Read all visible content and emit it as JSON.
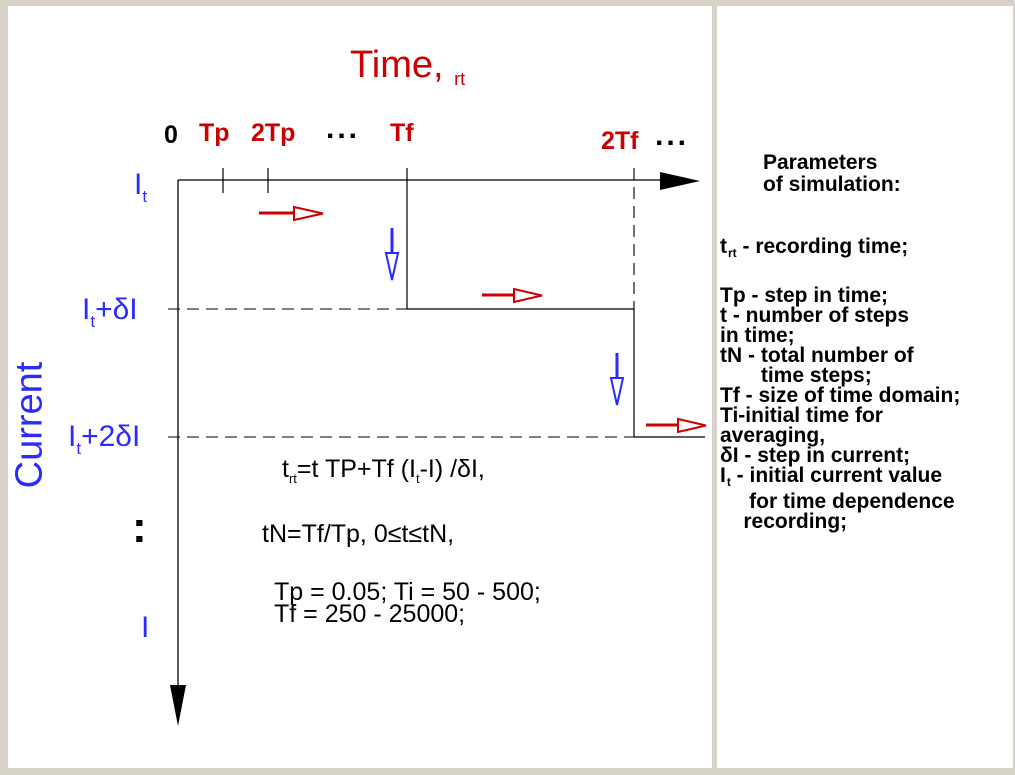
{
  "title": {
    "text": "Time, ",
    "sub": "rt"
  },
  "time_ticks": {
    "zero": "0",
    "tp": "Tp",
    "two_tp": "2Tp",
    "dots1": "...",
    "tf": "Tf",
    "two_tf": "2Tf",
    "dots2": "..."
  },
  "current_axis": {
    "label": "Current",
    "level0": {
      "main": "I",
      "sub": "t",
      "suffix": ""
    },
    "level1": {
      "main": "I",
      "sub": "t",
      "suffix": "+δI"
    },
    "level2": {
      "main": "I",
      "sub": "t",
      "suffix": "+2δI"
    },
    "dots": ":",
    "last": "I"
  },
  "formulas": {
    "line1": {
      "a": "t",
      "a_sub": "rt",
      "b": "=t TP+Tf (I",
      "b_sub": "t",
      "c": "-I) /δI,"
    },
    "line2": "tN=Tf/Tp, 0≤t≤tN,",
    "line3": "Tp = 0.05;  Ti = 50 - 500;",
    "line4": "Tf = 250 - 25000;"
  },
  "parameters": {
    "heading_line1": "Parameters",
    "heading_line2": "of simulation:",
    "trt": {
      "main": "t",
      "sub": "rt",
      "rest": " - recording time;"
    },
    "lines": [
      "Tp - step in time;",
      "t - number of steps",
      "in time;",
      "tN - total number of",
      "       time steps;",
      "Tf - size of time domain;",
      "Ti-initial time for",
      "averaging,",
      "δI - step in current;"
    ],
    "it": {
      "main": "I",
      "sub": "t",
      "rest": " - initial current  value"
    },
    "tail": [
      "     for time dependence",
      "    recording;"
    ]
  },
  "colors": {
    "red": "#cc0000",
    "blue": "#2b2bff",
    "background": "#d6d2c8"
  }
}
